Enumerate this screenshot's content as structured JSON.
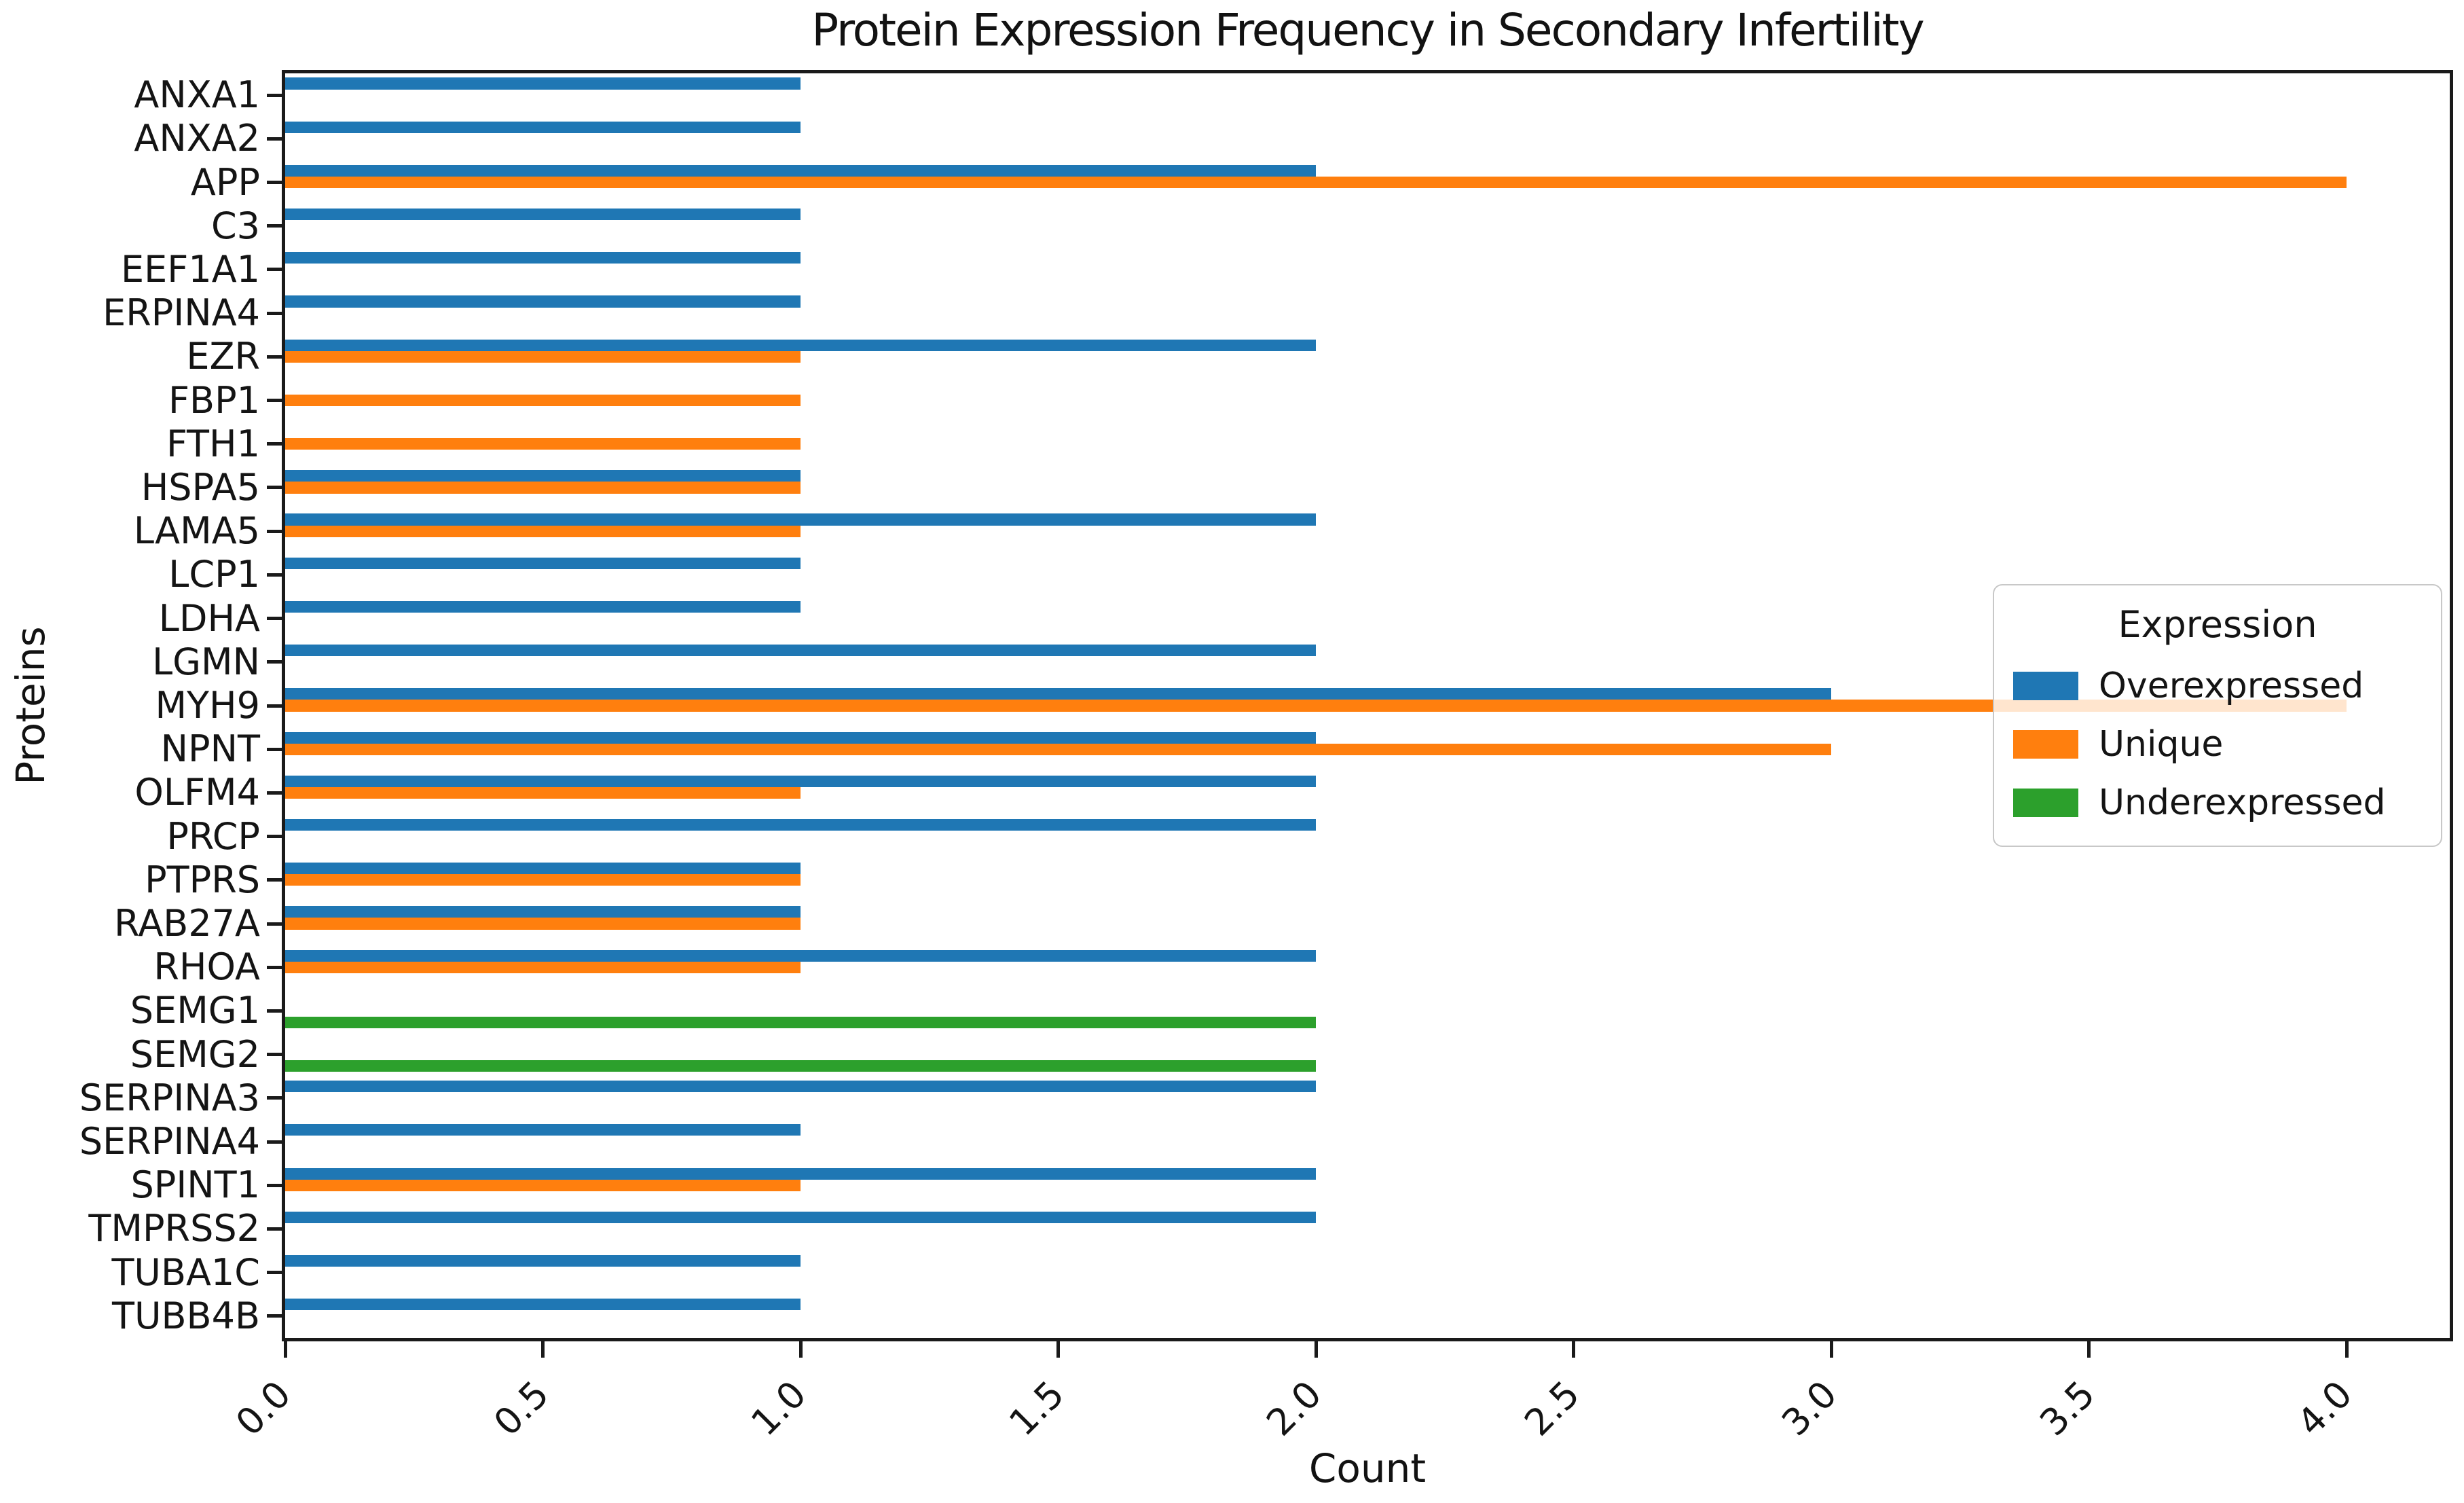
{
  "chart_data": {
    "type": "bar",
    "orientation": "horizontal",
    "title": "Protein Expression Frequency in Secondary Infertility",
    "xlabel": "Count",
    "ylabel": "Proteins",
    "categories": [
      "ANXA1",
      "ANXA2",
      "APP",
      "C3",
      "EEF1A1",
      "ERPINA4",
      "EZR",
      "FBP1",
      "FTH1",
      "HSPA5",
      "LAMA5",
      "LCP1",
      "LDHA",
      "LGMN",
      "MYH9",
      "NPNT",
      "OLFM4",
      "PRCP",
      "PTPRS",
      "RAB27A",
      "RHOA",
      "SEMG1",
      "SEMG2",
      "SERPINA3",
      "SERPINA4",
      "SPINT1",
      "TMPRSS2",
      "TUBA1C",
      "TUBB4B"
    ],
    "series": [
      {
        "name": "Overexpressed",
        "color": "#1f77b4",
        "values": [
          1,
          1,
          2,
          1,
          1,
          1,
          2,
          0,
          0,
          1,
          2,
          1,
          1,
          2,
          3,
          2,
          2,
          2,
          1,
          1,
          2,
          0,
          0,
          2,
          1,
          2,
          2,
          1,
          1
        ]
      },
      {
        "name": "Unique",
        "color": "#ff7f0e",
        "values": [
          0,
          0,
          4,
          0,
          0,
          0,
          1,
          1,
          1,
          1,
          1,
          0,
          0,
          0,
          4,
          3,
          1,
          0,
          1,
          1,
          1,
          0,
          0,
          0,
          0,
          1,
          0,
          0,
          0
        ]
      },
      {
        "name": "Underexpressed",
        "color": "#2ca02c",
        "values": [
          0,
          0,
          0,
          0,
          0,
          0,
          0,
          0,
          0,
          0,
          0,
          0,
          0,
          0,
          0,
          0,
          0,
          0,
          0,
          0,
          0,
          2,
          2,
          0,
          0,
          0,
          0,
          0,
          0
        ]
      }
    ],
    "x_ticks": [
      "0.0",
      "0.5",
      "1.0",
      "1.5",
      "2.0",
      "2.5",
      "3.0",
      "3.5",
      "4.0"
    ],
    "xlim": [
      0,
      4.2
    ],
    "grid": false,
    "legend": {
      "title": "Expression",
      "position": "center right"
    }
  }
}
